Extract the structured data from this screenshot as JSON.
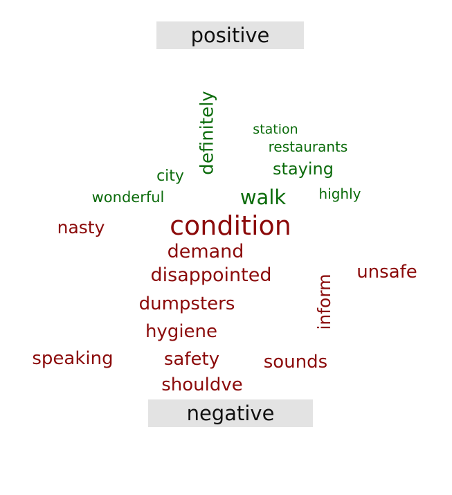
{
  "chart_data": {
    "type": "wordcloud",
    "groups": [
      {
        "label": "positive",
        "color": "#0b6b0b",
        "words": [
          "definitely",
          "station",
          "restaurants",
          "staying",
          "city",
          "wonderful",
          "walk",
          "highly"
        ]
      },
      {
        "label": "negative",
        "color": "#8b0a0a",
        "words": [
          "condition",
          "nasty",
          "demand",
          "disappointed",
          "unsafe",
          "inform",
          "dumpsters",
          "hygiene",
          "speaking",
          "safety",
          "sounds",
          "shouldve"
        ]
      }
    ]
  },
  "colors": {
    "banner_background": "#e3e3e3",
    "banner_text": "#111111"
  }
}
